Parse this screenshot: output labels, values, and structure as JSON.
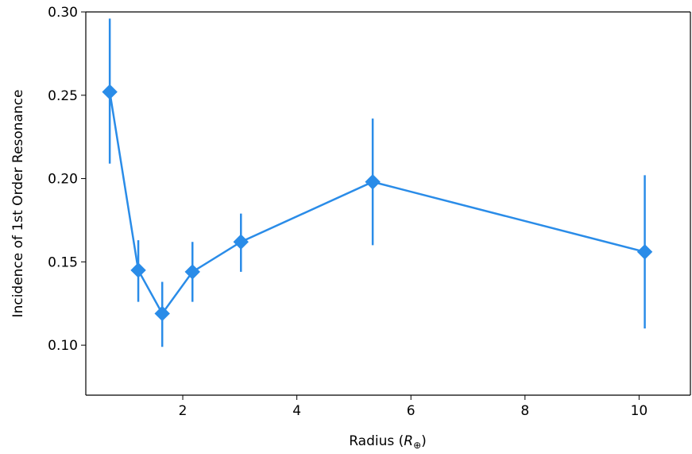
{
  "chart_data": {
    "type": "line",
    "title": "",
    "xlabel": "Radius (R⊕)",
    "xlabel_parts": {
      "main": "Radius (",
      "var": "R",
      "sub": "⊕",
      "close": ")"
    },
    "ylabel": "Incidence of 1st Order Resonance",
    "xlim": [
      0.3,
      10.9
    ],
    "ylim": [
      0.07,
      0.3
    ],
    "xticks": [
      2,
      4,
      6,
      8,
      10
    ],
    "xtick_labels": [
      "2",
      "4",
      "6",
      "8",
      "10"
    ],
    "yticks": [
      0.1,
      0.15,
      0.2,
      0.25,
      0.3
    ],
    "ytick_labels": [
      "0.10",
      "0.15",
      "0.20",
      "0.25",
      "0.30"
    ],
    "grid": false,
    "legend": "none",
    "series": [
      {
        "marker": "diamond",
        "color": "#2a8ce8",
        "x": [
          0.72,
          1.22,
          1.64,
          2.17,
          3.02,
          5.33,
          10.1
        ],
        "y": [
          0.252,
          0.145,
          0.119,
          0.144,
          0.162,
          0.198,
          0.156
        ],
        "yerr_low": [
          0.209,
          0.126,
          0.099,
          0.126,
          0.144,
          0.16,
          0.11
        ],
        "yerr_high": [
          0.296,
          0.163,
          0.138,
          0.162,
          0.179,
          0.236,
          0.202
        ]
      }
    ]
  }
}
